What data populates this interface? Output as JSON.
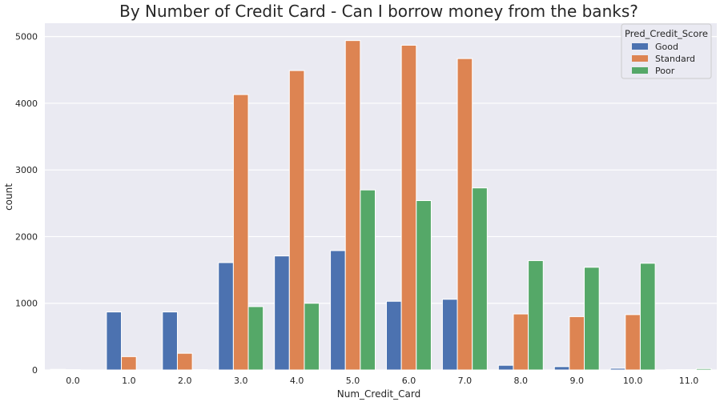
{
  "chart_data": {
    "type": "bar",
    "title": "By Number of Credit Card - Can I borrow money from the banks?",
    "xlabel": "Num_Credit_Card",
    "ylabel": "count",
    "ylim": [
      0,
      5200
    ],
    "yticks": [
      "0",
      "1000",
      "2000",
      "3000",
      "4000",
      "5000"
    ],
    "ytick_values": [
      0,
      1000,
      2000,
      3000,
      4000,
      5000
    ],
    "grid": true,
    "categories": [
      "0.0",
      "1.0",
      "2.0",
      "3.0",
      "4.0",
      "5.0",
      "6.0",
      "7.0",
      "8.0",
      "9.0",
      "10.0",
      "11.0"
    ],
    "legend": {
      "title": "Pred_Credit_Score",
      "placement": "top-right"
    },
    "series": [
      {
        "name": "Good",
        "color": "#4c72b0",
        "values": [
          10,
          870,
          870,
          1610,
          1710,
          1790,
          1030,
          1060,
          70,
          50,
          25,
          5
        ]
      },
      {
        "name": "Standard",
        "color": "#dd8452",
        "values": [
          5,
          200,
          250,
          4130,
          4490,
          4940,
          4870,
          4670,
          840,
          800,
          830,
          5
        ]
      },
      {
        "name": "Poor",
        "color": "#55a868",
        "values": [
          0,
          0,
          5,
          950,
          1000,
          2700,
          2540,
          2730,
          1640,
          1540,
          1600,
          20
        ]
      }
    ]
  }
}
